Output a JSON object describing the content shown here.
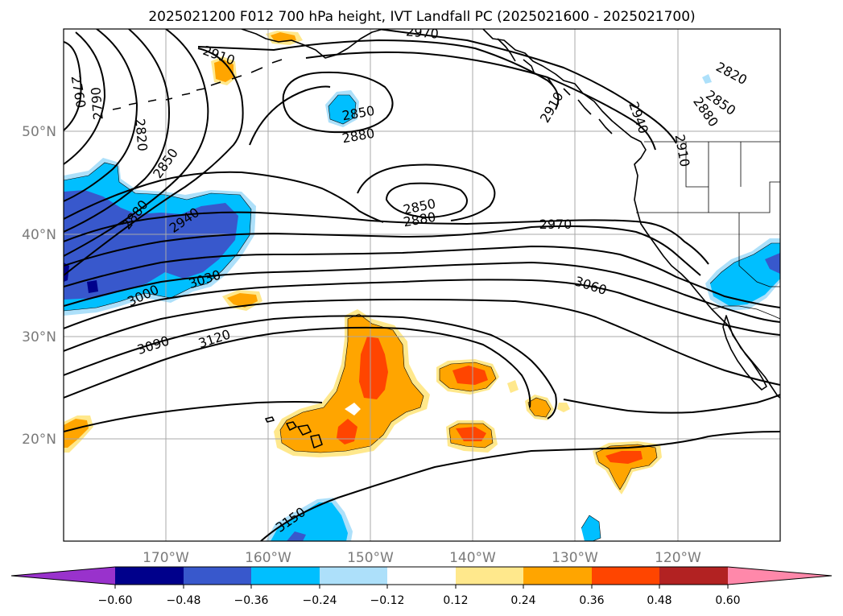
{
  "title": "2025021200 F012 700 hPa height, IVT Landfall PC (2025021600 - 2025021700)",
  "map": {
    "lon_labels": [
      "170°W",
      "160°W",
      "150°W",
      "140°W",
      "130°W",
      "120°W"
    ],
    "lat_labels": [
      "50°N",
      "40°N",
      "30°N",
      "20°N"
    ],
    "contour_labels": [
      "2760",
      "2790",
      "2820",
      "2850",
      "2880",
      "2910",
      "2940",
      "2970",
      "3000",
      "3030",
      "3060",
      "3090",
      "3120",
      "3150"
    ],
    "contour_color": "#000000"
  },
  "colorbar": {
    "ticks": [
      "−0.60",
      "−0.48",
      "−0.36",
      "−0.24",
      "−0.12",
      "0.12",
      "0.24",
      "0.36",
      "0.48",
      "0.60"
    ],
    "colors": [
      "#9932CC",
      "#00008B",
      "#3858CC",
      "#00BFFF",
      "#ADE0FA",
      "#FFFFFF",
      "#FFE88C",
      "#FFA500",
      "#FF4500",
      "#B22222",
      "#FF88AA"
    ]
  }
}
